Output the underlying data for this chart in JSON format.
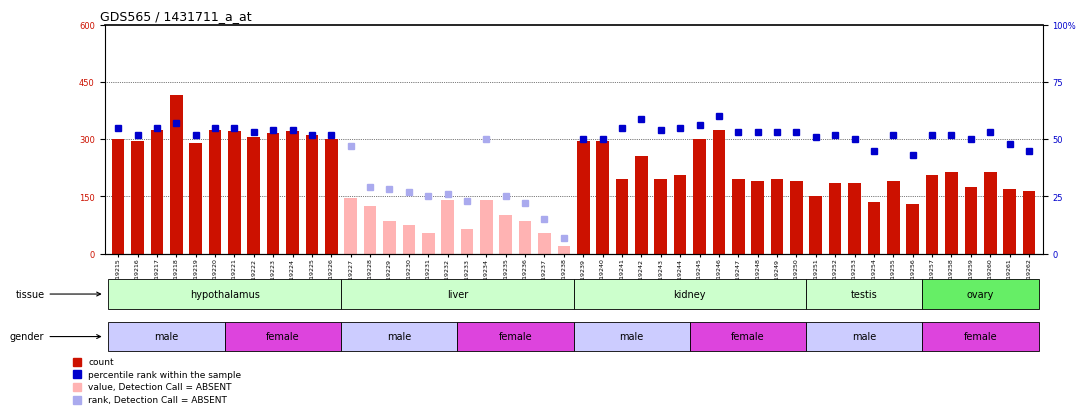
{
  "title": "GDS565 / 1431711_a_at",
  "samples": [
    "GSM19215",
    "GSM19216",
    "GSM19217",
    "GSM19218",
    "GSM19219",
    "GSM19220",
    "GSM19221",
    "GSM19222",
    "GSM19223",
    "GSM19224",
    "GSM19225",
    "GSM19226",
    "GSM19227",
    "GSM19228",
    "GSM19229",
    "GSM19230",
    "GSM19231",
    "GSM19232",
    "GSM19233",
    "GSM19234",
    "GSM19235",
    "GSM19236",
    "GSM19237",
    "GSM19238",
    "GSM19239",
    "GSM19240",
    "GSM19241",
    "GSM19242",
    "GSM19243",
    "GSM19244",
    "GSM19245",
    "GSM19246",
    "GSM19247",
    "GSM19248",
    "GSM19249",
    "GSM19250",
    "GSM19251",
    "GSM19252",
    "GSM19253",
    "GSM19254",
    "GSM19255",
    "GSM19256",
    "GSM19257",
    "GSM19258",
    "GSM19259",
    "GSM19260",
    "GSM19261",
    "GSM19262"
  ],
  "count_present": [
    300,
    295,
    325,
    415,
    290,
    325,
    320,
    305,
    315,
    320,
    310,
    300,
    null,
    null,
    null,
    null,
    null,
    null,
    null,
    null,
    null,
    null,
    null,
    null,
    295,
    295,
    195,
    255,
    195,
    205,
    300,
    325,
    195,
    190,
    195,
    190,
    150,
    185,
    185,
    135,
    190,
    130,
    205,
    215,
    175,
    215,
    170,
    165
  ],
  "count_absent": [
    null,
    null,
    null,
    null,
    null,
    null,
    null,
    null,
    null,
    null,
    null,
    null,
    145,
    125,
    85,
    75,
    55,
    140,
    65,
    140,
    100,
    85,
    55,
    20,
    null,
    null,
    null,
    null,
    null,
    null,
    null,
    null,
    null,
    null,
    null,
    null,
    null,
    null,
    null,
    null,
    null,
    null,
    null,
    null,
    null,
    null,
    null,
    null
  ],
  "rank_present": [
    55,
    52,
    55,
    57,
    52,
    55,
    55,
    53,
    54,
    54,
    52,
    52,
    null,
    null,
    null,
    null,
    null,
    null,
    null,
    null,
    null,
    null,
    null,
    null,
    50,
    50,
    55,
    59,
    54,
    55,
    56,
    60,
    53,
    53,
    53,
    53,
    51,
    52,
    50,
    45,
    52,
    43,
    52,
    52,
    50,
    53,
    48,
    45
  ],
  "rank_absent": [
    null,
    null,
    null,
    null,
    null,
    null,
    null,
    null,
    null,
    null,
    null,
    null,
    47,
    29,
    28,
    27,
    25,
    26,
    23,
    50,
    25,
    22,
    15,
    7,
    null,
    null,
    null,
    null,
    null,
    null,
    null,
    null,
    null,
    null,
    null,
    null,
    null,
    null,
    null,
    null,
    null,
    null,
    null,
    null,
    null,
    null,
    null,
    null
  ],
  "tissues": [
    {
      "label": "hypothalamus",
      "start": 0,
      "end": 11,
      "color": "#ccffcc"
    },
    {
      "label": "liver",
      "start": 12,
      "end": 23,
      "color": "#ccffcc"
    },
    {
      "label": "kidney",
      "start": 24,
      "end": 35,
      "color": "#ccffcc"
    },
    {
      "label": "testis",
      "start": 36,
      "end": 41,
      "color": "#ccffcc"
    },
    {
      "label": "ovary",
      "start": 42,
      "end": 47,
      "color": "#66ee66"
    }
  ],
  "genders": [
    {
      "label": "male",
      "start": 0,
      "end": 5,
      "color": "#ccccff"
    },
    {
      "label": "female",
      "start": 6,
      "end": 11,
      "color": "#dd44dd"
    },
    {
      "label": "male",
      "start": 12,
      "end": 17,
      "color": "#ccccff"
    },
    {
      "label": "female",
      "start": 18,
      "end": 23,
      "color": "#dd44dd"
    },
    {
      "label": "male",
      "start": 24,
      "end": 29,
      "color": "#ccccff"
    },
    {
      "label": "female",
      "start": 30,
      "end": 35,
      "color": "#dd44dd"
    },
    {
      "label": "male",
      "start": 36,
      "end": 41,
      "color": "#ccccff"
    },
    {
      "label": "female",
      "start": 42,
      "end": 47,
      "color": "#dd44dd"
    }
  ],
  "ylim_left": [
    0,
    600
  ],
  "ylim_right": [
    0,
    100
  ],
  "yticks_left": [
    0,
    150,
    300,
    450,
    600
  ],
  "yticks_right": [
    0,
    25,
    50,
    75,
    100
  ],
  "ytick_right_labels": [
    "0",
    "25",
    "50",
    "75",
    "100%"
  ],
  "bar_color_present": "#cc1100",
  "bar_color_absent": "#ffb3b3",
  "dot_color_present": "#0000cc",
  "dot_color_absent": "#aaaaee",
  "bg_color": "#ffffff",
  "title_fontsize": 9,
  "tick_fontsize": 6,
  "sample_fontsize": 4.5,
  "label_fontsize": 7
}
